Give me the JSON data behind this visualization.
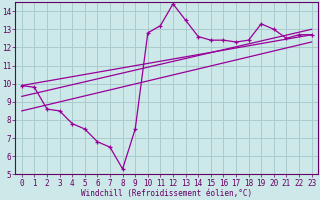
{
  "title": "",
  "xlabel": "Windchill (Refroidissement éolien,°C)",
  "background_color": "#cce8e8",
  "grid_color": "#aacccc",
  "line_color": "#990099",
  "xlim": [
    -0.5,
    23.5
  ],
  "ylim": [
    5,
    14.5
  ],
  "yticks": [
    5,
    6,
    7,
    8,
    9,
    10,
    11,
    12,
    13,
    14
  ],
  "xticks": [
    0,
    1,
    2,
    3,
    4,
    5,
    6,
    7,
    8,
    9,
    10,
    11,
    12,
    13,
    14,
    15,
    16,
    17,
    18,
    19,
    20,
    21,
    22,
    23
  ],
  "series1_x": [
    0,
    1,
    2,
    3,
    4,
    5,
    6,
    7,
    8,
    9,
    10,
    11,
    12,
    13,
    14,
    15,
    16,
    17,
    18,
    19,
    20,
    21,
    22,
    23
  ],
  "series1_y": [
    9.9,
    9.8,
    8.6,
    8.5,
    7.8,
    7.5,
    6.8,
    6.5,
    5.3,
    7.5,
    12.8,
    13.2,
    14.4,
    13.5,
    12.6,
    12.4,
    12.4,
    12.3,
    12.4,
    13.3,
    13.0,
    12.5,
    12.7,
    12.7
  ],
  "line1_x": [
    0,
    23
  ],
  "line1_y": [
    9.9,
    12.7
  ],
  "line2_x": [
    0,
    23
  ],
  "line2_y": [
    9.3,
    13.0
  ],
  "line3_x": [
    0,
    23
  ],
  "line3_y": [
    8.5,
    12.3
  ],
  "font_color": "#660066",
  "font_size": 5.5
}
